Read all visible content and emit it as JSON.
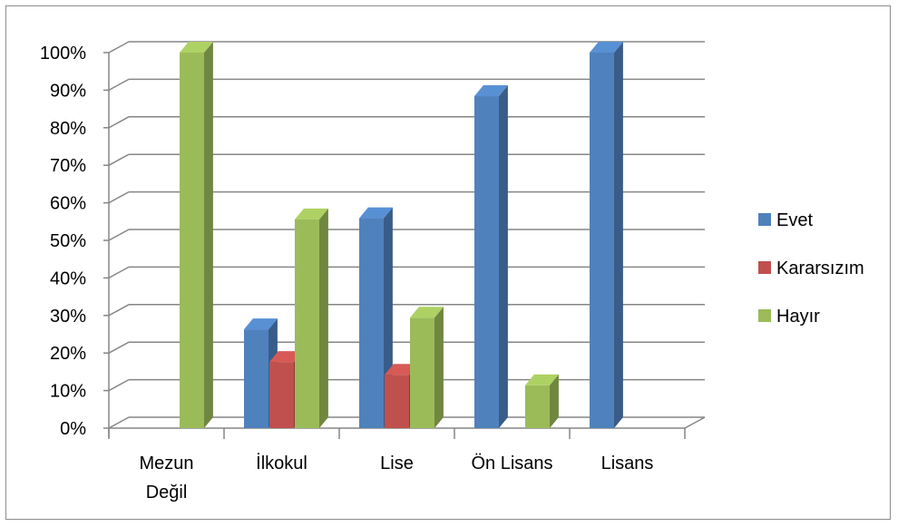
{
  "chart_data": {
    "type": "bar",
    "title": "",
    "xlabel": "",
    "ylabel": "",
    "categories": [
      [
        "Mezun",
        "Değil"
      ],
      [
        "İlkokul"
      ],
      [
        "Lise"
      ],
      [
        "Ön Lisans"
      ],
      [
        "Lisans"
      ]
    ],
    "series": [
      {
        "name": "Evet",
        "color": "#4f81bd",
        "values": [
          0,
          26.3,
          55.9,
          88.4,
          100
        ]
      },
      {
        "name": "Kararsızım",
        "color": "#c0504d",
        "values": [
          0,
          17.6,
          14.2,
          0,
          0
        ]
      },
      {
        "name": "Hayır",
        "color": "#9bbb59",
        "values": [
          100,
          55.6,
          29.4,
          11.4,
          0
        ]
      }
    ],
    "ylim": [
      0,
      100
    ],
    "yticks": [
      "0%",
      "10%",
      "20%",
      "30%",
      "40%",
      "50%",
      "60%",
      "70%",
      "80%",
      "90%",
      "100%"
    ],
    "grid": true,
    "legend_position": "right",
    "style": "3d-clustered-column"
  }
}
